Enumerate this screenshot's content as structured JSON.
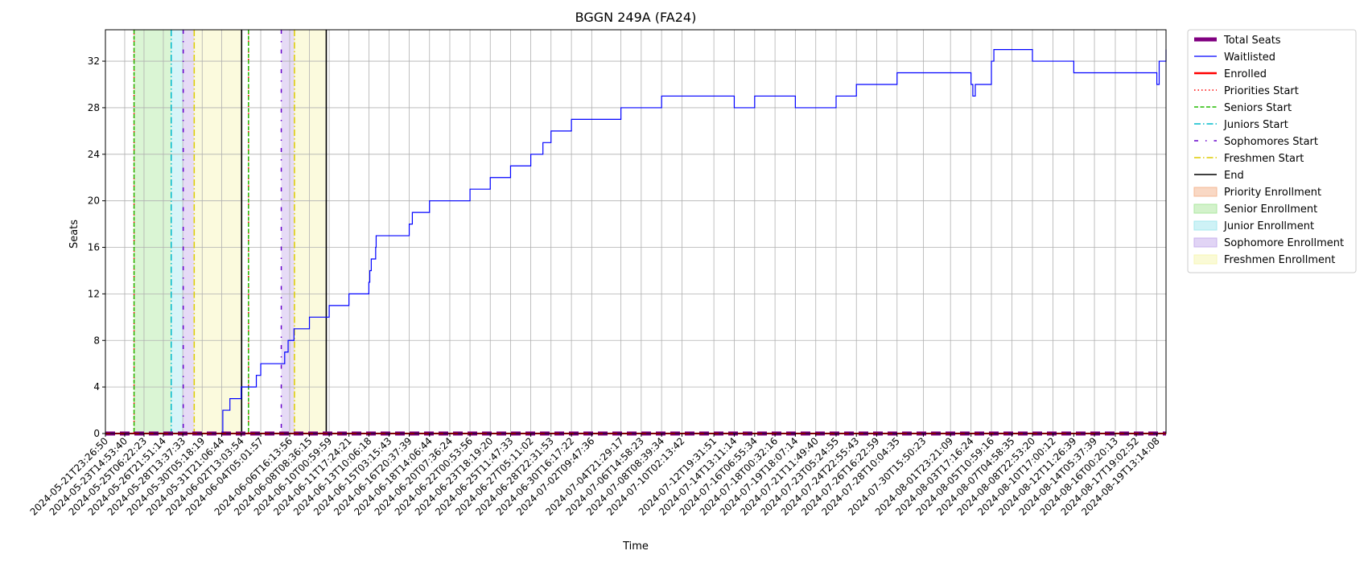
{
  "chart_data": {
    "type": "line",
    "title": "BGGN 249A (FA24)",
    "xlabel": "Time",
    "ylabel": "Seats",
    "ylim": [
      0,
      34.7
    ],
    "yticks": [
      0,
      4,
      8,
      12,
      16,
      20,
      24,
      28,
      32
    ],
    "grid": true,
    "legend_position": "outside-right-top",
    "x_range": [
      "2024-05-21T23:26:50",
      "2024-08-20T08:00:00"
    ],
    "x_tick_labels": [
      "2024-05-21T23:26:50",
      "2024-05-23T14:53:40",
      "2024-05-25T06:22:23",
      "2024-05-26T21:51:14",
      "2024-05-28T13:37:33",
      "2024-05-30T05:18:19",
      "2024-05-31T21:06:44",
      "2024-06-02T13:03:54",
      "2024-06-04T05:01:57",
      "2024-06-06T16:13:56",
      "2024-06-08T08:36:15",
      "2024-06-10T00:59:59",
      "2024-06-11T17:24:21",
      "2024-06-13T10:06:18",
      "2024-06-15T03:15:43",
      "2024-06-16T20:37:39",
      "2024-06-18T14:06:44",
      "2024-06-20T07:36:24",
      "2024-06-22T00:53:56",
      "2024-06-23T18:19:20",
      "2024-06-25T11:47:33",
      "2024-06-27T05:11:02",
      "2024-06-28T22:31:53",
      "2024-06-30T16:17:22",
      "2024-07-02T09:47:36",
      "2024-07-04T21:29:17",
      "2024-07-06T14:58:23",
      "2024-07-08T08:39:34",
      "2024-07-10T02:13:42",
      "2024-07-12T19:31:51",
      "2024-07-14T13:11:14",
      "2024-07-16T06:55:34",
      "2024-07-18T00:32:16",
      "2024-07-19T18:07:14",
      "2024-07-21T11:49:40",
      "2024-07-23T05:24:55",
      "2024-07-24T22:55:43",
      "2024-07-26T16:22:59",
      "2024-07-28T10:04:35",
      "2024-07-30T15:50:23",
      "2024-08-01T23:21:09",
      "2024-08-03T17:16:24",
      "2024-08-05T10:59:16",
      "2024-08-07T04:58:35",
      "2024-08-08T22:53:20",
      "2024-08-10T17:00:12",
      "2024-08-12T11:26:39",
      "2024-08-14T05:37:39",
      "2024-08-16T00:20:13",
      "2024-08-17T19:02:52",
      "2024-08-19T13:14:08"
    ],
    "series": [
      {
        "name": "Total Seats",
        "color": "#800080",
        "style": "thick-dashed",
        "x": [
          "2024-05-21T23:26:50",
          "2024-08-20T08:00:00"
        ],
        "values": [
          0,
          0
        ]
      },
      {
        "name": "Waitlisted",
        "color": "#0000ff",
        "style": "step",
        "x": [
          "2024-05-31T21:06:44",
          "2024-05-31T23:30:00",
          "2024-06-01T10:00:00",
          "2024-06-01T14:00:00",
          "2024-06-01T23:00:00",
          "2024-06-02T13:03:54",
          "2024-06-02T16:00:00",
          "2024-06-03T20:00:00",
          "2024-06-04T05:01:57",
          "2024-06-04T12:00:00",
          "2024-06-06T06:00:00",
          "2024-06-06T13:00:00",
          "2024-06-07T01:00:00",
          "2024-06-07T13:00:00",
          "2024-06-08T08:36:15",
          "2024-06-10T00:59:59",
          "2024-06-11T17:24:21",
          "2024-06-13T10:06:18",
          "2024-06-13T12:00:00",
          "2024-06-13T15:00:00",
          "2024-06-14T00:00:00",
          "2024-06-14T01:00:00",
          "2024-06-16T20:37:39",
          "2024-06-17T03:00:00",
          "2024-06-18T14:06:44",
          "2024-06-22T00:53:56",
          "2024-06-23T18:19:20",
          "2024-06-25T11:47:33",
          "2024-06-27T05:11:02",
          "2024-06-28T06:00:00",
          "2024-06-28T22:31:53",
          "2024-06-30T16:17:22",
          "2024-07-02T12:00:00",
          "2024-07-04T21:29:17",
          "2024-07-06T14:58:23",
          "2024-07-08T08:39:34",
          "2024-07-12T19:31:51",
          "2024-07-14T13:11:14",
          "2024-07-16T06:55:34",
          "2024-07-18T00:32:16",
          "2024-07-19T18:07:14",
          "2024-07-21T11:49:40",
          "2024-07-23T05:24:55",
          "2024-07-24T22:55:43",
          "2024-07-28T10:04:35",
          "2024-08-03T17:16:24",
          "2024-08-03T21:00:00",
          "2024-08-04T02:00:00",
          "2024-08-05T10:59:16",
          "2024-08-05T16:00:00",
          "2024-08-07T04:58:35",
          "2024-08-08T22:53:20",
          "2024-08-10T17:00:12",
          "2024-08-12T11:26:39",
          "2024-08-17T19:02:52",
          "2024-08-19T13:14:08",
          "2024-08-19T18:00:00",
          "2024-08-20T08:00:00"
        ],
        "values": [
          0,
          2,
          2,
          3,
          3,
          4,
          4,
          5,
          6,
          6,
          7,
          8,
          9,
          9,
          10,
          11,
          12,
          13,
          14,
          15,
          16,
          17,
          18,
          19,
          20,
          21,
          22,
          23,
          24,
          25,
          26,
          27,
          27,
          28,
          28,
          29,
          29,
          28,
          29,
          29,
          28,
          28,
          29,
          30,
          31,
          30,
          29,
          30,
          32,
          33,
          33,
          32,
          32,
          31,
          31,
          30,
          32,
          33
        ]
      },
      {
        "name": "Enrolled",
        "color": "#ff0000",
        "style": "dashed",
        "x": [
          "2024-05-21T23:26:50",
          "2024-08-20T08:00:00"
        ],
        "values": [
          0,
          0
        ]
      }
    ],
    "vertical_lines": [
      {
        "name": "Priorities Start",
        "color": "#ff0000",
        "style": "dotted",
        "x": [
          "2024-05-24T10:00:00",
          "2024-06-03T04:00:00"
        ]
      },
      {
        "name": "Seniors Start",
        "color": "#22bb00",
        "style": "dashed",
        "x": [
          "2024-05-24T10:00:00",
          "2024-06-03T04:00:00"
        ]
      },
      {
        "name": "Juniors Start",
        "color": "#00bbcc",
        "style": "dashdot",
        "x": [
          "2024-05-27T14:00:00"
        ]
      },
      {
        "name": "Sophomores Start",
        "color": "#6600cc",
        "style": "loosely-dashdot",
        "x": [
          "2024-05-28T14:30:00",
          "2024-06-05T23:00:00"
        ]
      },
      {
        "name": "Freshmen Start",
        "color": "#ddcc00",
        "style": "dashdot",
        "x": [
          "2024-05-29T13:00:00",
          "2024-06-07T02:00:00"
        ]
      },
      {
        "name": "End",
        "color": "#000000",
        "style": "solid",
        "x": [
          "2024-06-02T14:00:00",
          "2024-06-09T19:00:00"
        ]
      }
    ],
    "spans": [
      {
        "name": "Priority Enrollment",
        "color": "#f4b894",
        "ranges": []
      },
      {
        "name": "Senior Enrollment",
        "color": "#aee8a0",
        "ranges": [
          [
            "2024-05-24T10:00:00",
            "2024-05-27T14:00:00"
          ]
        ]
      },
      {
        "name": "Junior Enrollment",
        "color": "#a6e8ef",
        "ranges": [
          [
            "2024-05-27T14:00:00",
            "2024-05-28T14:30:00"
          ]
        ]
      },
      {
        "name": "Sophomore Enrollment",
        "color": "#c8b0ec",
        "ranges": [
          [
            "2024-05-28T14:30:00",
            "2024-05-29T13:00:00"
          ],
          [
            "2024-06-05T23:00:00",
            "2024-06-07T02:00:00"
          ]
        ]
      },
      {
        "name": "Freshmen Enrollment",
        "color": "#f6f5b4",
        "ranges": [
          [
            "2024-05-29T13:00:00",
            "2024-06-02T14:00:00"
          ],
          [
            "2024-06-07T02:00:00",
            "2024-06-09T19:00:00"
          ]
        ]
      }
    ],
    "legend": [
      "Total Seats",
      "Waitlisted",
      "Enrolled",
      "Priorities Start",
      "Seniors Start",
      "Juniors Start",
      "Sophomores Start",
      "Freshmen Start",
      "End",
      "Priority Enrollment",
      "Senior Enrollment",
      "Junior Enrollment",
      "Sophomore Enrollment",
      "Freshmen Enrollment"
    ]
  }
}
